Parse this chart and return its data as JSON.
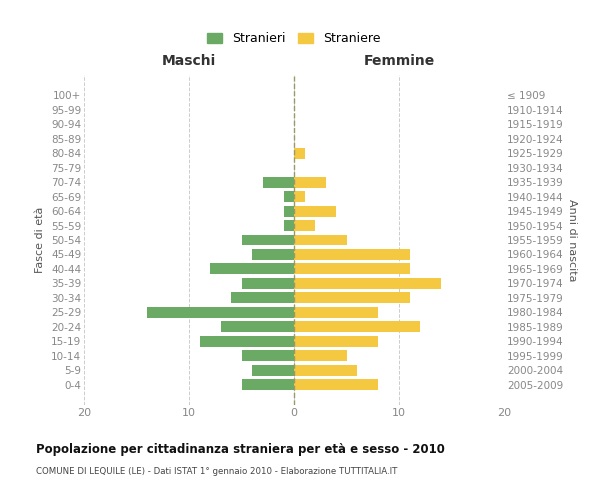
{
  "age_groups": [
    "100+",
    "95-99",
    "90-94",
    "85-89",
    "80-84",
    "75-79",
    "70-74",
    "65-69",
    "60-64",
    "55-59",
    "50-54",
    "45-49",
    "40-44",
    "35-39",
    "30-34",
    "25-29",
    "20-24",
    "15-19",
    "10-14",
    "5-9",
    "0-4"
  ],
  "birth_years": [
    "≤ 1909",
    "1910-1914",
    "1915-1919",
    "1920-1924",
    "1925-1929",
    "1930-1934",
    "1935-1939",
    "1940-1944",
    "1945-1949",
    "1950-1954",
    "1955-1959",
    "1960-1964",
    "1965-1969",
    "1970-1974",
    "1975-1979",
    "1980-1984",
    "1985-1989",
    "1990-1994",
    "1995-1999",
    "2000-2004",
    "2005-2009"
  ],
  "maschi": [
    0,
    0,
    0,
    0,
    0,
    0,
    3,
    1,
    1,
    1,
    5,
    4,
    8,
    5,
    6,
    14,
    7,
    9,
    5,
    4,
    5
  ],
  "femmine": [
    0,
    0,
    0,
    0,
    1,
    0,
    3,
    1,
    4,
    2,
    5,
    11,
    11,
    14,
    11,
    8,
    12,
    8,
    5,
    6,
    8
  ],
  "color_maschi": "#6aaa64",
  "color_femmine": "#f5c842",
  "title": "Popolazione per cittadinanza straniera per età e sesso - 2010",
  "subtitle": "COMUNE DI LEQUILE (LE) - Dati ISTAT 1° gennaio 2010 - Elaborazione TUTTITALIA.IT",
  "xlabel_left": "Maschi",
  "xlabel_right": "Femmine",
  "ylabel_left": "Fasce di età",
  "ylabel_right": "Anni di nascita",
  "legend_maschi": "Stranieri",
  "legend_femmine": "Straniere",
  "xlim": 20,
  "background_color": "#ffffff",
  "grid_color": "#cccccc",
  "tick_color": "#888888"
}
